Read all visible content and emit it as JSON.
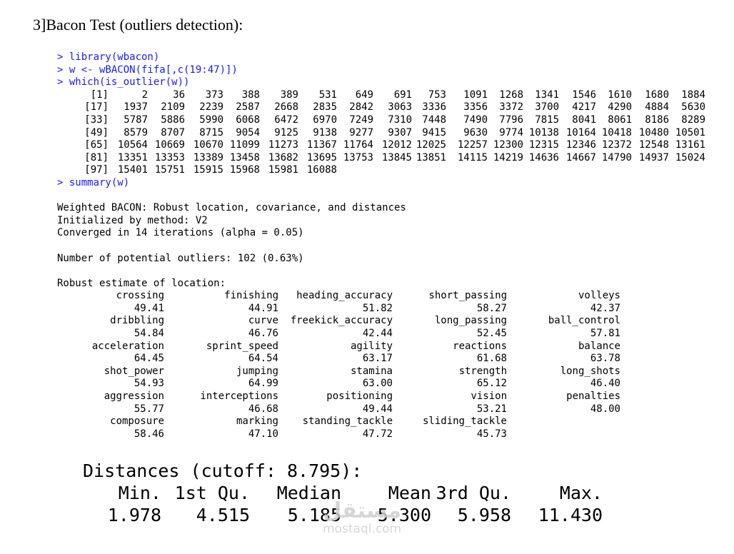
{
  "document": {
    "heading": "3]Bacon Test (outliers detection):"
  },
  "console": {
    "colors": {
      "command": "#1a1aff",
      "output": "#000000"
    },
    "commands": {
      "c1": "> library(wbacon)",
      "c2": "> w <- wBACON(fifa[,c(19:47)])",
      "c3": "> which(is_outlier(w))",
      "c4": "> summary(w)"
    },
    "outlier_rows": [
      [
        "[1]",
        "2",
        "36",
        "373",
        "388",
        "389",
        "531",
        "649",
        "691",
        "753",
        "1091",
        "1268",
        "1341",
        "1546",
        "1610",
        "1680",
        "1884"
      ],
      [
        "[17]",
        "1937",
        "2109",
        "2239",
        "2587",
        "2668",
        "2835",
        "2842",
        "3063",
        "3336",
        "3356",
        "3372",
        "3700",
        "4217",
        "4290",
        "4884",
        "5630"
      ],
      [
        "[33]",
        "5787",
        "5886",
        "5990",
        "6068",
        "6472",
        "6970",
        "7249",
        "7310",
        "7448",
        "7490",
        "7796",
        "7815",
        "8041",
        "8061",
        "8186",
        "8289"
      ],
      [
        "[49]",
        "8579",
        "8707",
        "8715",
        "9054",
        "9125",
        "9138",
        "9277",
        "9307",
        "9415",
        "9630",
        "9774",
        "10138",
        "10164",
        "10418",
        "10480",
        "10501"
      ],
      [
        "[65]",
        "10564",
        "10669",
        "10670",
        "11099",
        "11273",
        "11367",
        "11764",
        "12012",
        "12025",
        "12257",
        "12300",
        "12315",
        "12346",
        "12372",
        "12548",
        "13161"
      ],
      [
        "[81]",
        "13351",
        "13353",
        "13389",
        "13458",
        "13682",
        "13695",
        "13753",
        "13845",
        "13851",
        "14115",
        "14219",
        "14636",
        "14667",
        "14790",
        "14937",
        "15024"
      ],
      [
        "[97]",
        "15401",
        "15751",
        "15915",
        "15968",
        "15981",
        "16088",
        "",
        "",
        "",
        "",
        "",
        "",
        "",
        "",
        "",
        ""
      ]
    ],
    "summary_header": {
      "line1": "Weighted BACON: Robust location, covariance, and distances",
      "line2": "Initialized by method: V2",
      "line3": "Converged in 14 iterations (alpha = 0.05)",
      "line4": "Number of potential outliers: 102 (0.63%)",
      "line5": "Robust estimate of location:"
    },
    "location_rows": [
      [
        "crossing",
        "finishing",
        "heading_accuracy",
        "short_passing",
        "volleys"
      ],
      [
        "49.41",
        "44.91",
        "51.82",
        "58.27",
        "42.37"
      ],
      [
        "dribbling",
        "curve",
        "freekick_accuracy",
        "long_passing",
        "ball_control"
      ],
      [
        "54.84",
        "46.76",
        "42.44",
        "52.45",
        "57.81"
      ],
      [
        "acceleration",
        "sprint_speed",
        "agility",
        "reactions",
        "balance"
      ],
      [
        "64.45",
        "64.54",
        "63.17",
        "61.68",
        "63.78"
      ],
      [
        "shot_power",
        "jumping",
        "stamina",
        "strength",
        "long_shots"
      ],
      [
        "54.93",
        "64.99",
        "63.00",
        "65.12",
        "46.40"
      ],
      [
        "aggression",
        "interceptions",
        "positioning",
        "vision",
        "penalties"
      ],
      [
        "55.77",
        "46.68",
        "49.44",
        "53.21",
        "48.00"
      ],
      [
        "composure",
        "marking",
        "standing_tackle",
        "sliding_tackle",
        ""
      ],
      [
        "58.46",
        "47.10",
        "47.72",
        "45.73",
        ""
      ]
    ]
  },
  "distances": {
    "title": "Distances (cutoff: 8.795):",
    "headers": [
      "Min.",
      "1st Qu.",
      "Median",
      "Mean",
      "3rd Qu.",
      "Max."
    ],
    "values": [
      "1.978",
      "4.515",
      "5.185",
      "5.300",
      "5.958",
      "11.430"
    ]
  },
  "watermark": {
    "logo": "مستقل",
    "text": "mostaql.com"
  }
}
